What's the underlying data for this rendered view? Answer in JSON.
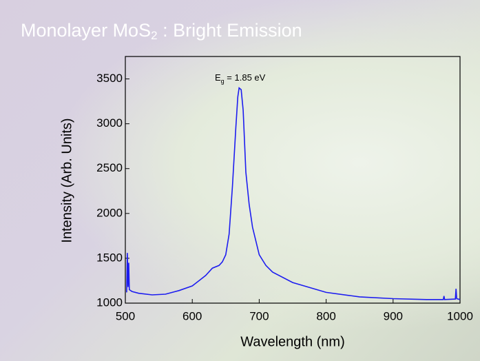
{
  "chart_data": {
    "type": "line",
    "title_parts": [
      "Monolayer MoS",
      "2",
      " : Bright Emission"
    ],
    "annotation_parts": [
      "E",
      "g",
      " = 1.85 eV"
    ],
    "x_label": "Wavelength (nm)",
    "y_label": "Intensity (Arb. Units)",
    "x": [
      502,
      503,
      504,
      505,
      506,
      510,
      520,
      540,
      560,
      580,
      600,
      610,
      620,
      630,
      640,
      645,
      650,
      655,
      660,
      665,
      668,
      670,
      673,
      676,
      680,
      685,
      690,
      700,
      710,
      720,
      750,
      800,
      850,
      900,
      950,
      975,
      976,
      977,
      993,
      994,
      995,
      1000
    ],
    "values": [
      1120,
      1560,
      1180,
      1450,
      1150,
      1130,
      1110,
      1092,
      1100,
      1140,
      1192,
      1250,
      1308,
      1390,
      1420,
      1460,
      1540,
      1770,
      2300,
      2950,
      3300,
      3400,
      3380,
      3150,
      2460,
      2100,
      1846,
      1540,
      1420,
      1346,
      1230,
      1120,
      1070,
      1050,
      1040,
      1040,
      1080,
      1040,
      1045,
      1160,
      1050,
      1040
    ],
    "color": "#1c1cf0",
    "xlim": [
      500,
      1000
    ],
    "ylim": [
      1000,
      3750
    ],
    "xticks": [
      500,
      600,
      700,
      800,
      900,
      1000
    ],
    "yticks": [
      1000,
      1500,
      2000,
      2500,
      3000,
      3500
    ]
  }
}
